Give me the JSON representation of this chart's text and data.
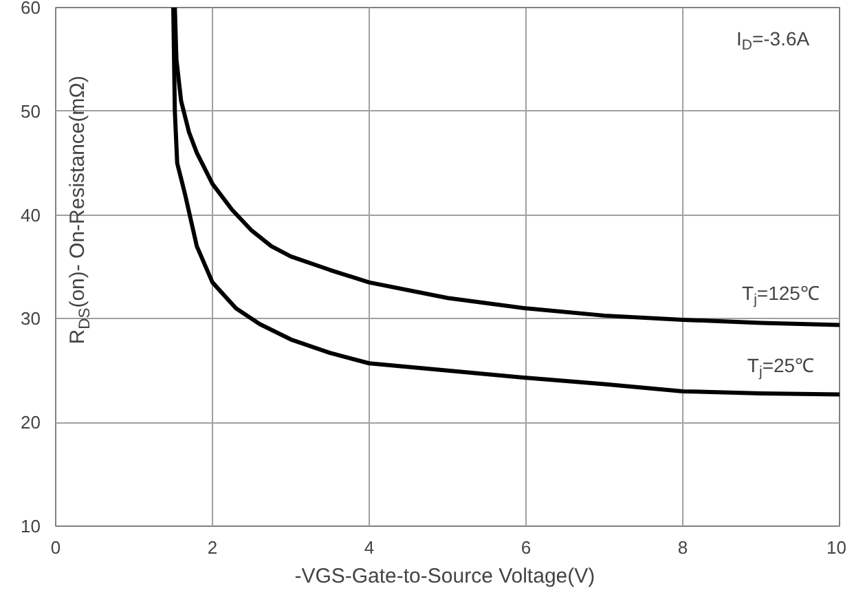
{
  "chart_data": {
    "type": "line",
    "xlabel": "-VGS-Gate-to-Source  Voltage(V)",
    "ylabel": "R$_{DS}$(on)- On-Resistance(mΩ)",
    "xlim": [
      0,
      10
    ],
    "ylim": [
      10,
      60
    ],
    "xticks": [
      0,
      2,
      4,
      6,
      8,
      10
    ],
    "yticks": [
      10,
      20,
      30,
      40,
      50,
      60
    ],
    "grid": true,
    "marker": "none",
    "line_style": "solid",
    "series": [
      {
        "color": "#000000",
        "x": [
          1.52,
          1.54,
          1.6,
          1.7,
          1.8,
          2,
          2.25,
          2.5,
          2.75,
          3,
          3.5,
          4,
          5,
          6,
          7,
          8,
          9,
          10
        ],
        "values": [
          60,
          55,
          51,
          48,
          46,
          43,
          40.5,
          38.5,
          37,
          36,
          34.7,
          33.5,
          32,
          31,
          30.3,
          29.9,
          29.6,
          29.4
        ]
      },
      {
        "color": "#000000",
        "x": [
          1.5,
          1.52,
          1.55,
          1.6,
          1.65,
          1.8,
          2,
          2.3,
          2.6,
          3,
          3.5,
          4,
          5,
          6,
          7,
          8,
          9,
          10
        ],
        "values": [
          60,
          50,
          45,
          43.5,
          42,
          37,
          33.5,
          31,
          29.5,
          28,
          26.7,
          25.7,
          25,
          24.3,
          23.7,
          23,
          22.8,
          22.7
        ]
      }
    ],
    "annotations": [
      "I$_{D}$=-3.6A",
      "T$_{j}$=125℃",
      "T$_{j}$=25℃"
    ]
  }
}
